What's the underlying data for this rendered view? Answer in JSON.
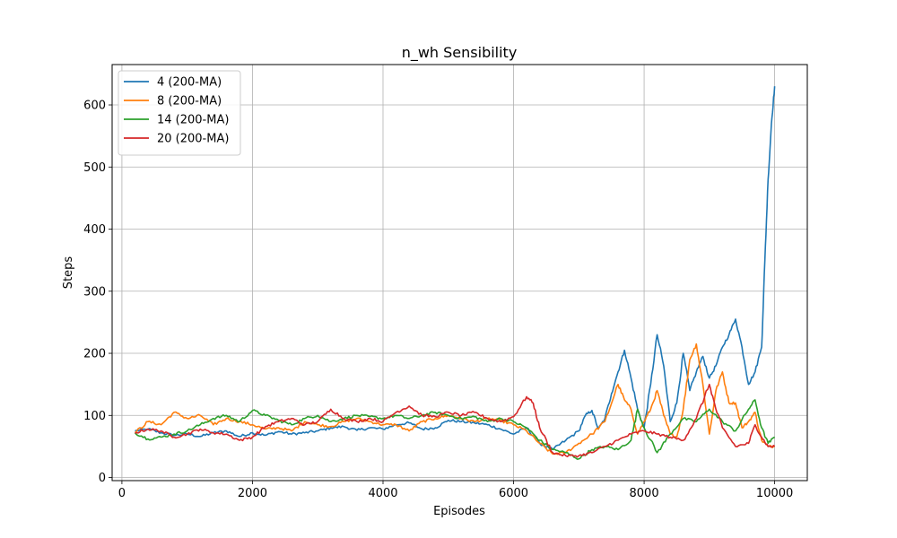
{
  "chart_data": {
    "type": "line",
    "title": "n_wh Sensibility",
    "xlabel": "Episodes",
    "ylabel": "Steps",
    "xlim": [
      -150,
      10500
    ],
    "ylim": [
      -5,
      665
    ],
    "xticks": [
      0,
      2000,
      4000,
      6000,
      8000,
      10000
    ],
    "yticks": [
      0,
      100,
      200,
      300,
      400,
      500,
      600
    ],
    "grid": true,
    "legend_position": "top-left",
    "series": [
      {
        "name": "4 (200-MA)",
        "color": "#1f77b4",
        "points": [
          [
            200,
            75
          ],
          [
            400,
            78
          ],
          [
            600,
            72
          ],
          [
            800,
            68
          ],
          [
            1000,
            70
          ],
          [
            1200,
            66
          ],
          [
            1400,
            72
          ],
          [
            1600,
            75
          ],
          [
            1800,
            66
          ],
          [
            2000,
            72
          ],
          [
            2200,
            68
          ],
          [
            2400,
            74
          ],
          [
            2600,
            70
          ],
          [
            2800,
            72
          ],
          [
            3000,
            75
          ],
          [
            3200,
            80
          ],
          [
            3400,
            82
          ],
          [
            3600,
            76
          ],
          [
            3800,
            80
          ],
          [
            4000,
            78
          ],
          [
            4200,
            85
          ],
          [
            4400,
            88
          ],
          [
            4600,
            78
          ],
          [
            4800,
            80
          ],
          [
            5000,
            92
          ],
          [
            5200,
            90
          ],
          [
            5400,
            88
          ],
          [
            5600,
            85
          ],
          [
            5800,
            78
          ],
          [
            6000,
            70
          ],
          [
            6200,
            80
          ],
          [
            6400,
            55
          ],
          [
            6600,
            45
          ],
          [
            6800,
            60
          ],
          [
            7000,
            75
          ],
          [
            7100,
            100
          ],
          [
            7200,
            108
          ],
          [
            7300,
            78
          ],
          [
            7400,
            95
          ],
          [
            7500,
            135
          ],
          [
            7600,
            170
          ],
          [
            7700,
            205
          ],
          [
            7800,
            160
          ],
          [
            7900,
            110
          ],
          [
            8000,
            80
          ],
          [
            8100,
            150
          ],
          [
            8200,
            230
          ],
          [
            8300,
            180
          ],
          [
            8400,
            90
          ],
          [
            8500,
            120
          ],
          [
            8600,
            200
          ],
          [
            8700,
            140
          ],
          [
            8800,
            170
          ],
          [
            8900,
            195
          ],
          [
            9000,
            160
          ],
          [
            9100,
            180
          ],
          [
            9200,
            210
          ],
          [
            9300,
            230
          ],
          [
            9400,
            255
          ],
          [
            9500,
            210
          ],
          [
            9600,
            150
          ],
          [
            9700,
            170
          ],
          [
            9800,
            210
          ],
          [
            9850,
            350
          ],
          [
            9900,
            480
          ],
          [
            9950,
            570
          ],
          [
            10000,
            630
          ]
        ]
      },
      {
        "name": "8 (200-MA)",
        "color": "#ff7f0e",
        "points": [
          [
            200,
            72
          ],
          [
            400,
            90
          ],
          [
            600,
            85
          ],
          [
            800,
            105
          ],
          [
            1000,
            95
          ],
          [
            1200,
            100
          ],
          [
            1400,
            85
          ],
          [
            1600,
            95
          ],
          [
            1800,
            90
          ],
          [
            2000,
            85
          ],
          [
            2200,
            78
          ],
          [
            2400,
            80
          ],
          [
            2600,
            75
          ],
          [
            2800,
            90
          ],
          [
            3000,
            85
          ],
          [
            3200,
            82
          ],
          [
            3400,
            90
          ],
          [
            3600,
            95
          ],
          [
            3800,
            90
          ],
          [
            4000,
            85
          ],
          [
            4200,
            85
          ],
          [
            4400,
            75
          ],
          [
            4600,
            90
          ],
          [
            4800,
            95
          ],
          [
            5000,
            100
          ],
          [
            5200,
            95
          ],
          [
            5400,
            90
          ],
          [
            5600,
            95
          ],
          [
            5800,
            92
          ],
          [
            6000,
            85
          ],
          [
            6200,
            75
          ],
          [
            6400,
            55
          ],
          [
            6600,
            38
          ],
          [
            6800,
            40
          ],
          [
            7000,
            55
          ],
          [
            7200,
            70
          ],
          [
            7400,
            90
          ],
          [
            7600,
            150
          ],
          [
            7700,
            125
          ],
          [
            7800,
            110
          ],
          [
            7900,
            70
          ],
          [
            8000,
            90
          ],
          [
            8100,
            110
          ],
          [
            8200,
            140
          ],
          [
            8300,
            100
          ],
          [
            8400,
            70
          ],
          [
            8500,
            65
          ],
          [
            8600,
            110
          ],
          [
            8700,
            190
          ],
          [
            8800,
            215
          ],
          [
            8900,
            150
          ],
          [
            9000,
            70
          ],
          [
            9100,
            140
          ],
          [
            9200,
            170
          ],
          [
            9300,
            120
          ],
          [
            9400,
            120
          ],
          [
            9500,
            80
          ],
          [
            9600,
            90
          ],
          [
            9700,
            105
          ],
          [
            9800,
            60
          ],
          [
            9900,
            50
          ],
          [
            10000,
            50
          ]
        ]
      },
      {
        "name": "14 (200-MA)",
        "color": "#2ca02c",
        "points": [
          [
            200,
            72
          ],
          [
            400,
            62
          ],
          [
            600,
            65
          ],
          [
            800,
            70
          ],
          [
            1000,
            75
          ],
          [
            1200,
            85
          ],
          [
            1400,
            95
          ],
          [
            1600,
            100
          ],
          [
            1800,
            90
          ],
          [
            2000,
            108
          ],
          [
            2200,
            100
          ],
          [
            2400,
            92
          ],
          [
            2600,
            85
          ],
          [
            2800,
            95
          ],
          [
            3000,
            100
          ],
          [
            3200,
            90
          ],
          [
            3400,
            95
          ],
          [
            3600,
            100
          ],
          [
            3800,
            98
          ],
          [
            4000,
            95
          ],
          [
            4200,
            100
          ],
          [
            4400,
            95
          ],
          [
            4600,
            100
          ],
          [
            4800,
            105
          ],
          [
            5000,
            100
          ],
          [
            5200,
            95
          ],
          [
            5400,
            98
          ],
          [
            5600,
            90
          ],
          [
            5800,
            95
          ],
          [
            6000,
            90
          ],
          [
            6200,
            80
          ],
          [
            6400,
            60
          ],
          [
            6600,
            45
          ],
          [
            6800,
            40
          ],
          [
            7000,
            30
          ],
          [
            7200,
            45
          ],
          [
            7400,
            50
          ],
          [
            7600,
            45
          ],
          [
            7800,
            60
          ],
          [
            7900,
            110
          ],
          [
            8000,
            80
          ],
          [
            8200,
            40
          ],
          [
            8400,
            70
          ],
          [
            8600,
            95
          ],
          [
            8800,
            90
          ],
          [
            9000,
            110
          ],
          [
            9200,
            90
          ],
          [
            9400,
            75
          ],
          [
            9600,
            110
          ],
          [
            9700,
            125
          ],
          [
            9800,
            80
          ],
          [
            9900,
            55
          ],
          [
            10000,
            65
          ]
        ]
      },
      {
        "name": "20 (200-MA)",
        "color": "#d62728",
        "points": [
          [
            200,
            72
          ],
          [
            400,
            78
          ],
          [
            600,
            75
          ],
          [
            800,
            65
          ],
          [
            1000,
            70
          ],
          [
            1200,
            78
          ],
          [
            1400,
            72
          ],
          [
            1600,
            70
          ],
          [
            1800,
            60
          ],
          [
            2000,
            65
          ],
          [
            2200,
            82
          ],
          [
            2400,
            90
          ],
          [
            2600,
            95
          ],
          [
            2800,
            85
          ],
          [
            3000,
            90
          ],
          [
            3200,
            110
          ],
          [
            3400,
            95
          ],
          [
            3600,
            90
          ],
          [
            3800,
            95
          ],
          [
            4000,
            90
          ],
          [
            4200,
            105
          ],
          [
            4400,
            115
          ],
          [
            4600,
            100
          ],
          [
            4800,
            98
          ],
          [
            5000,
            105
          ],
          [
            5200,
            100
          ],
          [
            5400,
            105
          ],
          [
            5600,
            95
          ],
          [
            5800,
            90
          ],
          [
            6000,
            98
          ],
          [
            6200,
            130
          ],
          [
            6300,
            120
          ],
          [
            6400,
            80
          ],
          [
            6600,
            40
          ],
          [
            6800,
            35
          ],
          [
            7000,
            35
          ],
          [
            7200,
            40
          ],
          [
            7400,
            50
          ],
          [
            7600,
            60
          ],
          [
            7800,
            70
          ],
          [
            8000,
            75
          ],
          [
            8200,
            70
          ],
          [
            8400,
            65
          ],
          [
            8600,
            60
          ],
          [
            8800,
            95
          ],
          [
            9000,
            150
          ],
          [
            9100,
            110
          ],
          [
            9200,
            80
          ],
          [
            9400,
            50
          ],
          [
            9600,
            55
          ],
          [
            9700,
            85
          ],
          [
            9800,
            65
          ],
          [
            9900,
            50
          ],
          [
            10000,
            50
          ]
        ]
      }
    ]
  }
}
